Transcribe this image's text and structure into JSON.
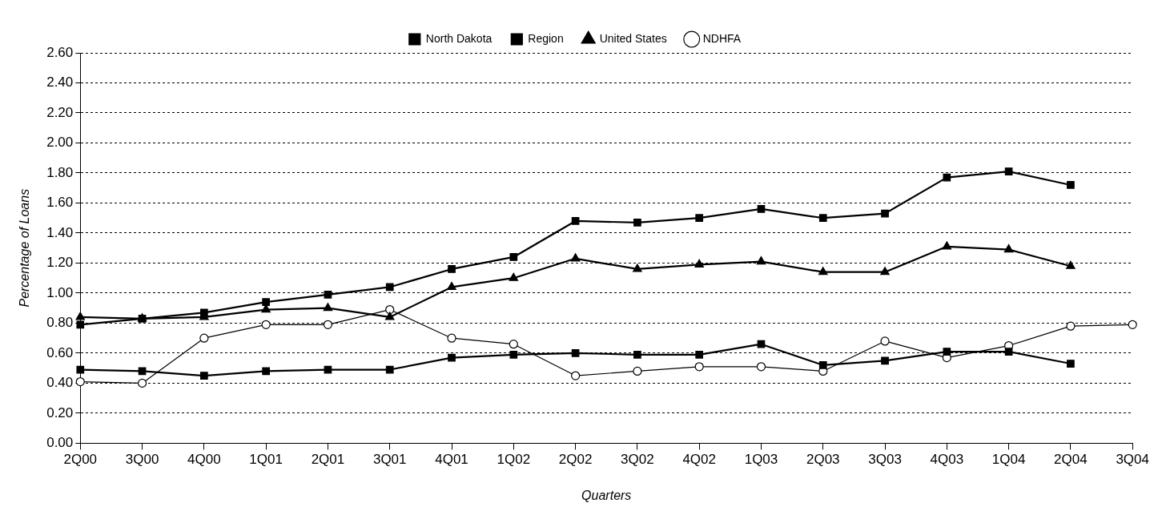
{
  "chart_data": {
    "type": "line",
    "xlabel": "Quarters",
    "ylabel": "Percentage of Loans",
    "categories": [
      "2Q00",
      "3Q00",
      "4Q00",
      "1Q01",
      "2Q01",
      "3Q01",
      "4Q01",
      "1Q02",
      "2Q02",
      "3Q02",
      "4Q02",
      "1Q03",
      "2Q03",
      "3Q03",
      "4Q03",
      "1Q04",
      "2Q04",
      "3Q04"
    ],
    "series": [
      {
        "name": "North Dakota",
        "color": "#000000",
        "marker": "square",
        "values": [
          0.49,
          0.48,
          0.45,
          0.48,
          0.49,
          0.49,
          0.57,
          0.59,
          0.6,
          0.59,
          0.59,
          0.66,
          0.52,
          0.55,
          0.61,
          0.61,
          0.53,
          null
        ]
      },
      {
        "name": "Region",
        "color": "#000000",
        "marker": "square",
        "values": [
          0.79,
          0.83,
          0.87,
          0.94,
          0.99,
          1.04,
          1.16,
          1.24,
          1.48,
          1.47,
          1.5,
          1.56,
          1.5,
          1.53,
          1.77,
          1.81,
          1.72,
          null
        ]
      },
      {
        "name": "United States",
        "color": "#000000",
        "marker": "triangle",
        "values": [
          0.84,
          0.83,
          0.84,
          0.89,
          0.9,
          0.84,
          1.04,
          1.1,
          1.23,
          1.16,
          1.19,
          1.21,
          1.14,
          1.14,
          1.31,
          1.29,
          1.18,
          null
        ]
      },
      {
        "name": "NDHFA",
        "color": "#000000",
        "marker": "circle",
        "values": [
          0.41,
          0.4,
          0.7,
          0.79,
          0.79,
          0.89,
          0.7,
          0.66,
          0.45,
          0.48,
          0.51,
          0.51,
          0.48,
          0.68,
          0.57,
          0.65,
          0.78,
          0.79
        ]
      }
    ],
    "ylim": [
      0,
      2.6
    ],
    "yticks": [
      {
        "value": 0,
        "label": "0.00"
      },
      {
        "value": 0.2,
        "label": "0.20"
      },
      {
        "value": 0.4,
        "label": "0.40"
      },
      {
        "value": 0.6,
        "label": "0.60"
      },
      {
        "value": 0.8,
        "label": "0.80"
      },
      {
        "value": 1.0,
        "label": "1.00"
      },
      {
        "value": 1.2,
        "label": "1.20"
      },
      {
        "value": 1.4,
        "label": "1.40"
      },
      {
        "value": 1.6,
        "label": "1.60"
      },
      {
        "value": 1.8,
        "label": "1.80"
      },
      {
        "value": 2.0,
        "label": "2.00"
      },
      {
        "value": 2.2,
        "label": "2.20"
      },
      {
        "value": 2.4,
        "label": "2.40"
      },
      {
        "value": 2.6,
        "label": "2.60"
      }
    ],
    "grid": "y",
    "legend": "top"
  }
}
